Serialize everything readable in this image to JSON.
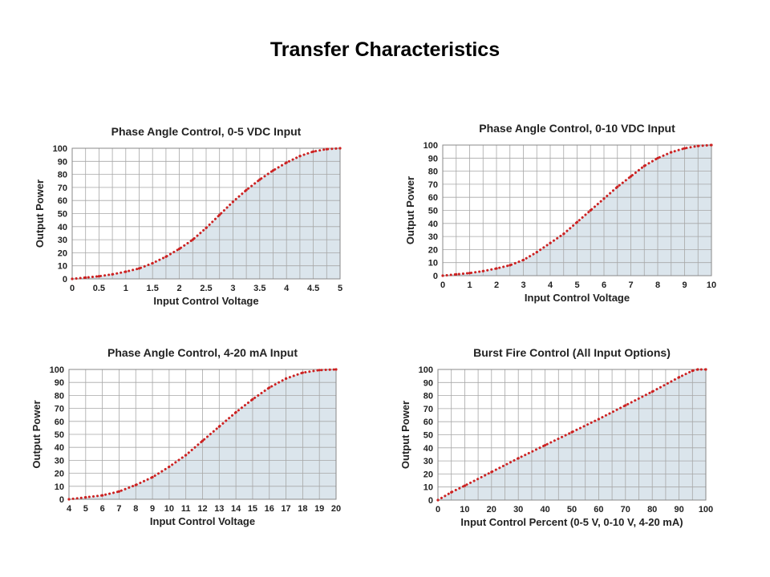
{
  "page": {
    "title": "Transfer Characteristics"
  },
  "style": {
    "fill": "#dbe5ec",
    "line": "#cc2222",
    "grid": "#a7a7a7",
    "frame": "#888888"
  },
  "chart_data": [
    {
      "type": "line",
      "title": "Phase Angle Control, 0-5 VDC Input",
      "xlabel": "Input Control Voltage",
      "ylabel": "Output Power",
      "xlim": [
        0,
        5
      ],
      "ylim": [
        0,
        100
      ],
      "grid": true,
      "area_fill": true,
      "x_ticks": [
        0,
        0.5,
        1,
        1.5,
        2,
        2.5,
        3,
        3.5,
        4,
        4.5,
        5
      ],
      "y_ticks": [
        0,
        10,
        20,
        30,
        40,
        50,
        60,
        70,
        80,
        90,
        100
      ],
      "x_minor_step": 0.25,
      "series": [
        {
          "x": [
            0,
            0.25,
            0.5,
            0.75,
            1,
            1.25,
            1.5,
            1.75,
            2,
            2.25,
            2.5,
            2.75,
            3,
            3.25,
            3.5,
            3.75,
            4,
            4.25,
            4.5,
            4.75,
            5
          ],
          "y": [
            0,
            1,
            2,
            3.5,
            5.5,
            8,
            12,
            17,
            23,
            30,
            39,
            49,
            59,
            68,
            76,
            83,
            89,
            94,
            97.5,
            99.3,
            100
          ]
        }
      ]
    },
    {
      "type": "line",
      "title": "Phase Angle Control, 0-10 VDC Input",
      "xlabel": "Input Control Voltage",
      "ylabel": "Output Power",
      "xlim": [
        0,
        10
      ],
      "ylim": [
        0,
        100
      ],
      "grid": true,
      "area_fill": true,
      "x_ticks": [
        0,
        1,
        2,
        3,
        4,
        5,
        6,
        7,
        8,
        9,
        10
      ],
      "y_ticks": [
        0,
        10,
        20,
        30,
        40,
        50,
        60,
        70,
        80,
        90,
        100
      ],
      "x_minor_step": 0.5,
      "series": [
        {
          "x": [
            0,
            0.5,
            1,
            1.5,
            2,
            2.5,
            3,
            3.5,
            4,
            4.5,
            5,
            5.5,
            6,
            6.5,
            7,
            7.5,
            8,
            8.5,
            9,
            9.5,
            10
          ],
          "y": [
            0,
            1,
            2,
            3.5,
            5.5,
            8,
            12,
            18,
            25,
            32,
            41,
            50,
            59,
            68,
            76,
            84,
            90,
            94.5,
            97.5,
            99.3,
            100
          ]
        }
      ]
    },
    {
      "type": "line",
      "title": "Phase Angle Control, 4-20 mA Input",
      "xlabel": "Input Control Voltage",
      "ylabel": "Output Power",
      "xlim": [
        4,
        20
      ],
      "ylim": [
        0,
        100
      ],
      "grid": true,
      "area_fill": true,
      "x_ticks": [
        4,
        5,
        6,
        7,
        8,
        9,
        10,
        11,
        12,
        13,
        14,
        15,
        16,
        17,
        18,
        19,
        20
      ],
      "y_ticks": [
        0,
        10,
        20,
        30,
        40,
        50,
        60,
        70,
        80,
        90,
        100
      ],
      "x_minor_step": 1,
      "series": [
        {
          "x": [
            4,
            5,
            6,
            7,
            8,
            9,
            10,
            11,
            12,
            13,
            14,
            15,
            16,
            17,
            18,
            19,
            20
          ],
          "y": [
            0,
            1.5,
            3,
            6,
            11,
            17,
            25,
            34,
            45,
            56,
            67,
            77,
            86,
            93,
            97.5,
            99.5,
            100
          ]
        }
      ]
    },
    {
      "type": "line",
      "title": "Burst Fire Control (All Input Options)",
      "xlabel": "Input Control Percent (0-5 V, 0-10 V, 4-20 mA)",
      "ylabel": "Output Power",
      "xlim": [
        0,
        100
      ],
      "ylim": [
        0,
        100
      ],
      "grid": true,
      "area_fill": true,
      "x_ticks": [
        0,
        10,
        20,
        30,
        40,
        50,
        60,
        70,
        80,
        90,
        100
      ],
      "y_ticks": [
        0,
        10,
        20,
        30,
        40,
        50,
        60,
        70,
        80,
        90,
        100
      ],
      "x_minor_step": 5,
      "series": [
        {
          "x": [
            0,
            5,
            10,
            20,
            30,
            40,
            50,
            60,
            70,
            80,
            90,
            95,
            97,
            100
          ],
          "y": [
            0,
            6,
            11,
            21.5,
            32,
            42,
            52,
            62,
            72.5,
            83,
            94,
            99,
            100,
            100
          ]
        }
      ]
    }
  ]
}
